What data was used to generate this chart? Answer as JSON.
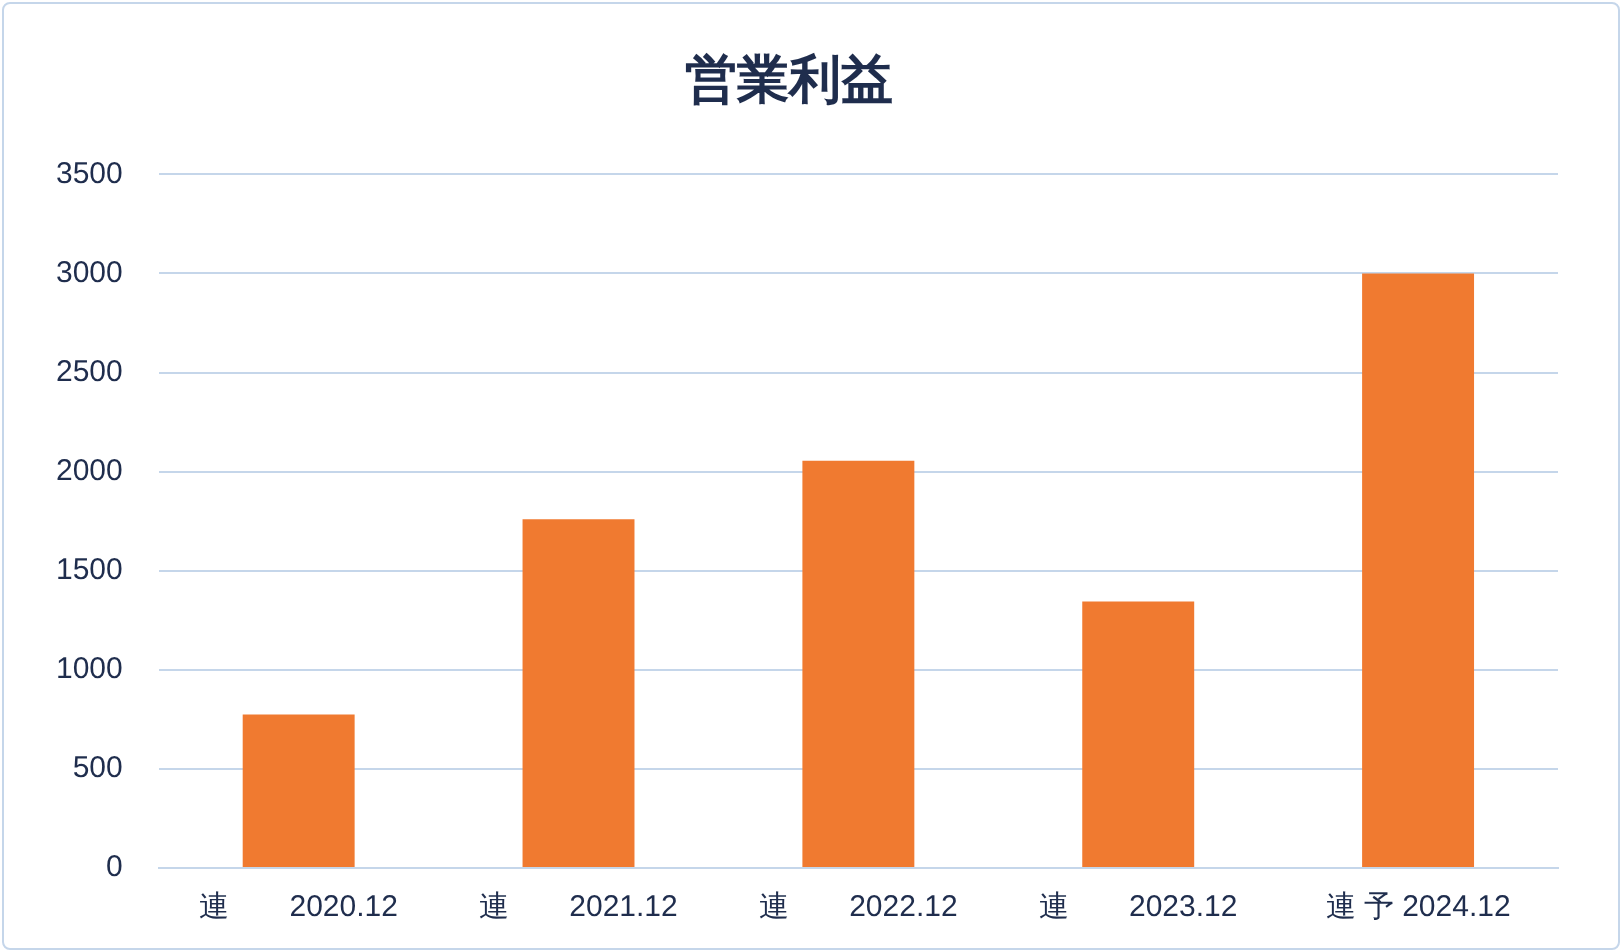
{
  "chart_data": {
    "type": "bar",
    "title": "営業利益",
    "categories": [
      "連　　2020.12",
      "連　　2021.12",
      "連　　2022.12",
      "連　　2023.12",
      "連 予 2024.12"
    ],
    "values": [
      775,
      1760,
      2055,
      1345,
      3000
    ],
    "color": "#f07a30",
    "ylim": [
      0,
      3500
    ],
    "yticks": [
      0,
      500,
      1000,
      1500,
      2000,
      2500,
      3000,
      3500
    ],
    "grid": "y",
    "legend": false
  }
}
